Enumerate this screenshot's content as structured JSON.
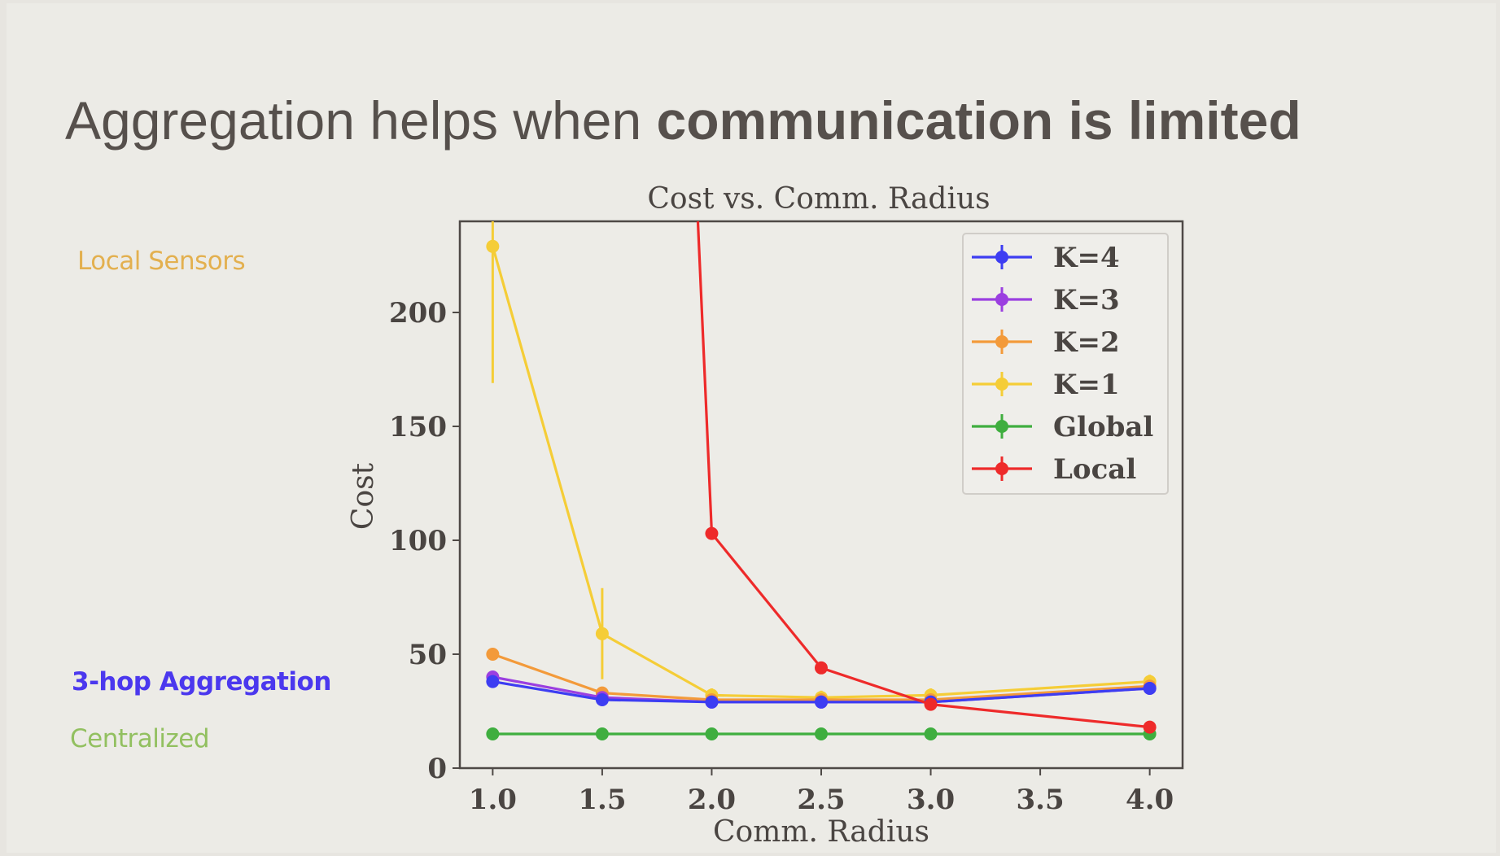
{
  "slide": {
    "title_regular": "Aggregation helps when ",
    "title_bold": "communication is limited",
    "labels": [
      {
        "text": "Local Sensors",
        "color": "#e3b04f"
      },
      {
        "text": "3-hop Aggregation",
        "color": "#4b38ee"
      },
      {
        "text": "Centralized",
        "color": "#92c060"
      }
    ]
  },
  "chart_data": {
    "type": "line",
    "title": "Cost vs. Comm. Radius",
    "xlabel": "Comm. Radius",
    "ylabel": "Cost",
    "xlim": [
      0.85,
      4.15
    ],
    "ylim": [
      0,
      240
    ],
    "xticks": [
      "1.0",
      "1.5",
      "2.0",
      "2.5",
      "3.0",
      "3.5",
      "4.0"
    ],
    "yticks": [
      "0",
      "50",
      "100",
      "150",
      "200"
    ],
    "grid": false,
    "legend_position": "top-right",
    "x": [
      1.0,
      1.5,
      2.0,
      2.5,
      3.0,
      4.0
    ],
    "series": [
      {
        "name": "K=4",
        "color": "#3d3df2",
        "values": [
          38,
          30,
          29,
          29,
          29,
          35
        ]
      },
      {
        "name": "K=3",
        "color": "#9b3fe0",
        "values": [
          40,
          31,
          29,
          29,
          29,
          35
        ]
      },
      {
        "name": "K=2",
        "color": "#f39a3a",
        "values": [
          50,
          33,
          30,
          30,
          30,
          36
        ]
      },
      {
        "name": "K=1",
        "color": "#f5cd37",
        "values": [
          229,
          59,
          32,
          31,
          32,
          38
        ],
        "err": [
          60,
          20,
          3,
          3,
          3,
          3
        ]
      },
      {
        "name": "Global",
        "color": "#3fae3f",
        "values": [
          15,
          15,
          15,
          15,
          15,
          15
        ]
      },
      {
        "name": "Local",
        "color": "#ee2a2a",
        "values": [
          null,
          null,
          103,
          44,
          28,
          18
        ],
        "offscale_start": 2.0
      }
    ]
  }
}
